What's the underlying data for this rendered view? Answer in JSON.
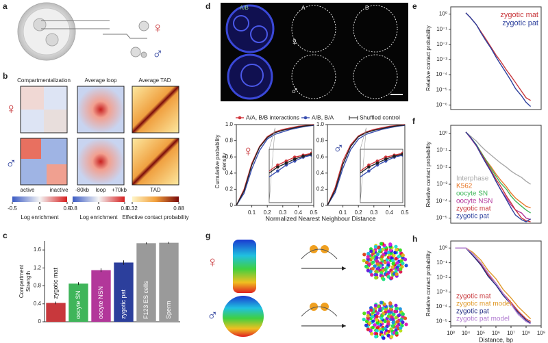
{
  "panel_labels": [
    "a",
    "b",
    "c",
    "d",
    "e",
    "f",
    "g",
    "h"
  ],
  "female_symbol": "♀",
  "male_symbol": "♂",
  "b": {
    "column_titles": [
      "Compartmentalization",
      "Average loop",
      "Average TAD"
    ],
    "axis_labels": [
      "active",
      "inactive",
      "-80kb",
      "loop",
      "+70kb",
      "TAD"
    ],
    "colorbars": [
      {
        "ticks": [
          -0.5,
          0,
          0.5
        ],
        "label": "Log enrichment"
      },
      {
        "ticks": [
          -0.8,
          0,
          0.8
        ],
        "label": "Log enrichment"
      },
      {
        "ticks": [
          0.32,
          0.88
        ],
        "label": "Effective contact probability"
      }
    ]
  },
  "d": {
    "channel_labels": [
      "A/B",
      "A",
      "B"
    ],
    "ylabel": [
      "Cumulative probability",
      "density"
    ],
    "xlabel": "Normalized Nearest Neighbour Distance"
  },
  "chart_data": [
    {
      "type": "bar",
      "ylabel": [
        "Compartment",
        "Strength"
      ],
      "categories": [
        "zygotic mat",
        "oocyte SN",
        "oocyte NSN",
        "zygotic pat",
        "F123 ES cells",
        "Sperm"
      ],
      "values": [
        0.42,
        0.85,
        1.15,
        1.32,
        1.75,
        1.76
      ],
      "errors": [
        0.03,
        0.03,
        0.04,
        0.05,
        0.02,
        0.02
      ],
      "colors": [
        "#c8383c",
        "#3fb55a",
        "#b2379a",
        "#2c3f9c",
        "#9a9a9a",
        "#9a9a9a"
      ],
      "ylim": [
        0,
        1.8
      ],
      "yticks": [
        0,
        0.4,
        0.8,
        1.2,
        1.6
      ]
    },
    {
      "type": "line",
      "x": [
        0,
        0.05,
        0.1,
        0.15,
        0.2,
        0.25,
        0.3,
        0.35,
        0.4,
        0.45,
        0.5
      ],
      "xlim": [
        0,
        0.5
      ],
      "xticks": [
        0.1,
        0.2,
        0.3,
        0.4,
        0.5
      ],
      "ylim": [
        0,
        1
      ],
      "yticks": [
        0,
        0.2,
        0.4,
        0.6,
        0.8,
        {
          "value": 1,
          "label": "1.0"
        }
      ],
      "series": [
        {
          "name": "A/A, B/B interactions",
          "color": "#d0343a",
          "values": [
            0,
            0.2,
            0.52,
            0.73,
            0.85,
            0.91,
            0.94,
            0.96,
            0.98,
            0.99,
            1.0
          ]
        },
        {
          "name": "A/B, B/A",
          "color": "#3a4fb0",
          "values": [
            0,
            0.15,
            0.45,
            0.68,
            0.82,
            0.88,
            0.91,
            0.94,
            0.96,
            0.98,
            0.99
          ]
        },
        {
          "name": "Shuffled control",
          "color": "#222222",
          "values": [
            0,
            0.18,
            0.5,
            0.72,
            0.84,
            0.9,
            0.93,
            0.95,
            0.97,
            0.985,
            0.995
          ]
        }
      ]
    },
    {
      "type": "line",
      "x": [
        0,
        0.05,
        0.1,
        0.15,
        0.2,
        0.25,
        0.3,
        0.35,
        0.4,
        0.45,
        0.5
      ],
      "xlim": [
        0,
        0.5
      ],
      "xticks": [
        0.1,
        0.2,
        0.3,
        0.4,
        0.5
      ],
      "ylim": [
        0,
        1
      ],
      "yticks": [
        0,
        0.2,
        0.4,
        0.6,
        0.8,
        {
          "value": 1,
          "label": "1.0"
        }
      ],
      "series": [
        {
          "color": "#d0343a",
          "values": [
            0,
            0.22,
            0.55,
            0.75,
            0.86,
            0.91,
            0.94,
            0.96,
            0.98,
            0.99,
            1.0
          ]
        },
        {
          "color": "#3a4fb0",
          "values": [
            0,
            0.16,
            0.46,
            0.69,
            0.82,
            0.88,
            0.91,
            0.94,
            0.96,
            0.98,
            0.99
          ]
        },
        {
          "color": "#222222",
          "values": [
            0,
            0.19,
            0.51,
            0.73,
            0.85,
            0.9,
            0.93,
            0.95,
            0.97,
            0.985,
            0.995
          ]
        }
      ]
    },
    {
      "type": "loglog",
      "ylabel": "Relative contact probability",
      "x": [
        10000,
        20000,
        50000,
        100000,
        200000,
        500000,
        1000000,
        2000000,
        5000000,
        10000000,
        20000000,
        50000000,
        100000000,
        200000000
      ],
      "xlim": [
        1000,
        1000000000
      ],
      "ylim": [
        5e-07,
        3
      ],
      "yticks": [
        {
          "value": 1,
          "label": "10⁰"
        },
        {
          "value": 0.1,
          "label": "10⁻¹"
        },
        {
          "value": 0.01,
          "label": "10⁻²"
        },
        {
          "value": 0.001,
          "label": "10⁻³"
        },
        {
          "value": 0.0001,
          "label": "10⁻⁴"
        },
        {
          "value": 1e-05,
          "label": "10⁻⁵"
        },
        {
          "value": 1e-06,
          "label": "10⁻⁶"
        }
      ],
      "legend": "upper right",
      "series": [
        {
          "name": "zygotic mat",
          "color": "#c8383c",
          "values": [
            1.2,
            0.6,
            0.2,
            0.07,
            0.025,
            0.006,
            0.002,
            0.0008,
            0.0002,
            8e-05,
            3e-05,
            8e-06,
            3e-06,
            2e-06
          ]
        },
        {
          "name": "zygotic pat",
          "color": "#2c3f9c",
          "values": [
            1.2,
            0.6,
            0.2,
            0.06,
            0.02,
            0.005,
            0.0015,
            0.0005,
            0.00012,
            4e-05,
            1.2e-05,
            4e-06,
            1.5e-06,
            8e-07
          ]
        }
      ]
    },
    {
      "type": "loglog",
      "ylabel": "Relative contact probability",
      "x": [
        10000,
        20000,
        50000,
        100000,
        200000,
        500000,
        1000000,
        2000000,
        5000000,
        10000000,
        20000000,
        50000000,
        100000000,
        200000000
      ],
      "xlim": [
        1000,
        1000000000
      ],
      "ylim": [
        5e-06,
        3
      ],
      "yticks": [
        {
          "value": 1,
          "label": "10⁰"
        },
        {
          "value": 0.1,
          "label": "10⁻¹"
        },
        {
          "value": 0.01,
          "label": "10⁻²"
        },
        {
          "value": 0.001,
          "label": "10⁻³"
        },
        {
          "value": 0.0001,
          "label": "10⁻⁴"
        },
        {
          "value": 1e-05,
          "label": "10⁻⁵"
        }
      ],
      "legend": "lower left",
      "series": [
        {
          "name": "Interphase",
          "color": "#a8a8a8",
          "values": [
            1.2,
            0.7,
            0.35,
            0.18,
            0.1,
            0.05,
            0.03,
            0.018,
            0.01,
            0.006,
            0.004,
            0.0025,
            0.0015,
            0.001
          ]
        },
        {
          "name": "K562",
          "color": "#e8792a",
          "values": [
            1.2,
            0.6,
            0.2,
            0.08,
            0.03,
            0.01,
            0.004,
            0.0018,
            0.0007,
            0.0003,
            0.00015,
            8e-05,
            5e-05,
            4e-05
          ]
        },
        {
          "name": "oocyte SN",
          "color": "#3fb55a",
          "values": [
            1.2,
            0.6,
            0.22,
            0.08,
            0.03,
            0.008,
            0.003,
            0.0012,
            0.0005,
            0.0002,
            0.0001,
            5e-05,
            3e-05,
            2e-05
          ]
        },
        {
          "name": "oocyte NSN",
          "color": "#b2379a",
          "values": [
            1.2,
            0.55,
            0.18,
            0.06,
            0.02,
            0.005,
            0.0015,
            0.0005,
            0.00015,
            6e-05,
            3e-05,
            2e-05,
            1e-05,
            8e-06
          ]
        },
        {
          "name": "zygotic mat",
          "color": "#c8383c",
          "values": [
            1.2,
            0.6,
            0.2,
            0.07,
            0.025,
            0.006,
            0.002,
            0.0008,
            0.0002,
            8e-05,
            3e-05,
            1e-05,
            7e-06,
            6e-06
          ]
        },
        {
          "name": "zygotic pat",
          "color": "#2c3f9c",
          "values": [
            1.2,
            0.6,
            0.2,
            0.06,
            0.02,
            0.005,
            0.0015,
            0.0005,
            0.00012,
            4e-05,
            1.5e-05,
            8e-06,
            6e-06,
            9e-06
          ]
        }
      ]
    },
    {
      "type": "loglog",
      "ylabel": "Relative contact probability",
      "xlabel": "Distance, bp",
      "x": [
        2000,
        5000,
        10000,
        30000,
        100000,
        300000,
        1000000,
        3000000,
        10000000,
        30000000,
        100000000,
        200000000
      ],
      "xlim": [
        1000,
        1000000000
      ],
      "ylim": [
        5e-06,
        3
      ],
      "xticks": [
        {
          "value": 1000,
          "label": "10³"
        },
        {
          "value": 10000,
          "label": "10⁴"
        },
        {
          "value": 100000,
          "label": "10⁵"
        },
        {
          "value": 1000000,
          "label": "10⁶"
        },
        {
          "value": 10000000,
          "label": "10⁷"
        },
        {
          "value": 100000000,
          "label": "10⁸"
        },
        {
          "value": 1000000000,
          "label": "10⁹"
        }
      ],
      "yticks": [
        {
          "value": 1,
          "label": "10⁰"
        },
        {
          "value": 0.1,
          "label": "10⁻¹"
        },
        {
          "value": 0.01,
          "label": "10⁻²"
        },
        {
          "value": 0.001,
          "label": "10⁻³"
        },
        {
          "value": 0.0001,
          "label": "10⁻⁴"
        },
        {
          "value": 1e-05,
          "label": "10⁻⁵"
        }
      ],
      "legend": "lower left",
      "series": [
        {
          "name": "zygotic mat",
          "color": "#c8383c",
          "values": [
            1,
            1,
            1,
            0.3,
            0.08,
            0.015,
            0.004,
            0.0008,
            0.0002,
            5e-05,
            1.5e-05,
            1e-05
          ]
        },
        {
          "name": "zygotic mat model",
          "color": "#e09a2a",
          "values": [
            1,
            1,
            1,
            0.5,
            0.15,
            0.03,
            0.008,
            0.0015,
            0.0004,
            0.0001,
            3e-05,
            1.5e-05
          ]
        },
        {
          "name": "zygotic pat",
          "color": "#1f2a80",
          "values": [
            1,
            1,
            1,
            0.3,
            0.07,
            0.012,
            0.003,
            0.0006,
            0.00015,
            4e-05,
            1.2e-05,
            8e-06
          ]
        },
        {
          "name": "zygotic pat model",
          "color": "#b07ad0",
          "values": [
            1,
            1,
            1,
            0.4,
            0.1,
            0.02,
            0.004,
            0.0008,
            0.00015,
            3e-05,
            1e-05,
            7e-06
          ]
        }
      ]
    }
  ]
}
